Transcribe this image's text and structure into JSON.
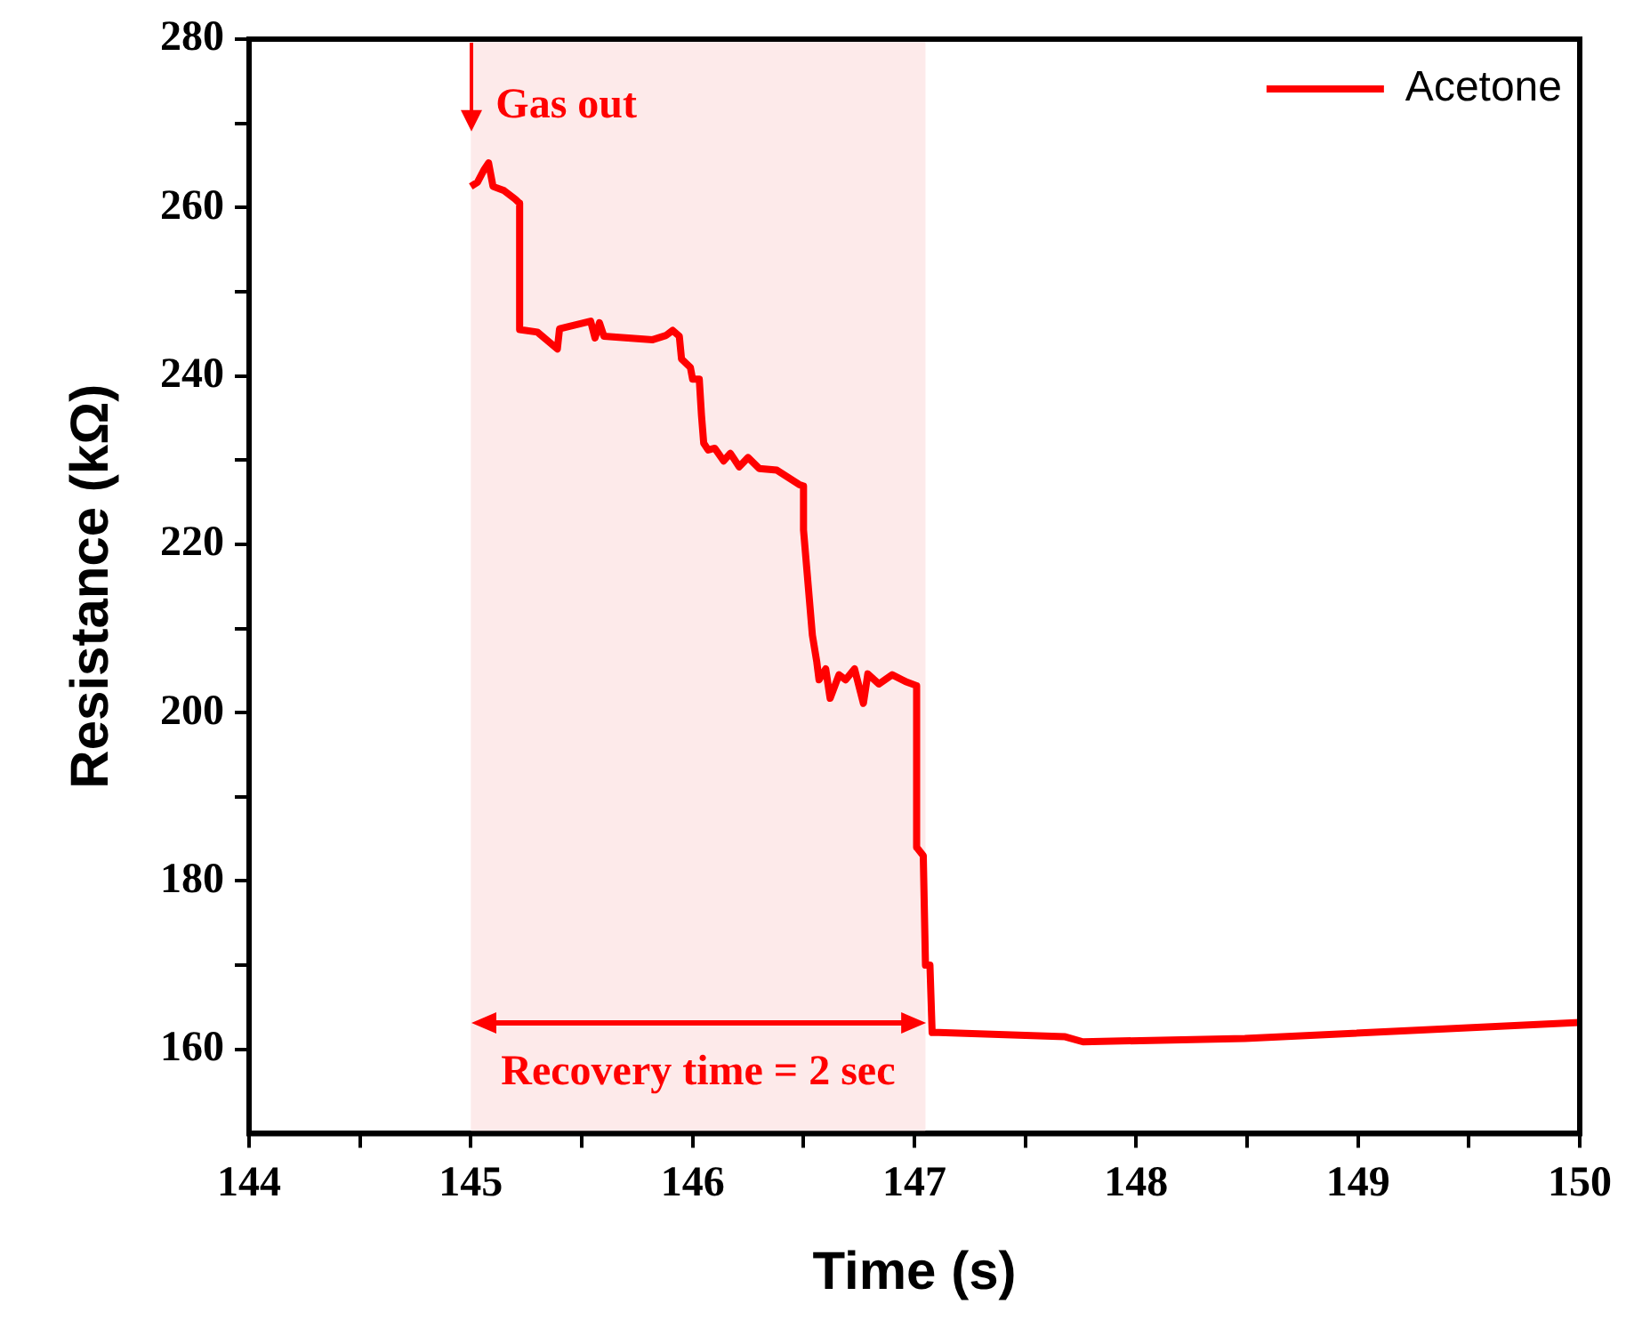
{
  "chart_data": {
    "type": "line",
    "xlabel": "Time (s)",
    "ylabel": "Resistance (kΩ)",
    "x": [
      145.0,
      145.03,
      145.06,
      145.08,
      145.1,
      145.15,
      145.2,
      145.22,
      145.22,
      145.3,
      145.39,
      145.4,
      145.54,
      145.56,
      145.58,
      145.6,
      145.82,
      145.88,
      145.91,
      145.94,
      145.95,
      145.99,
      146.0,
      146.03,
      146.04,
      146.05,
      146.07,
      146.1,
      146.14,
      146.17,
      146.21,
      146.25,
      146.3,
      146.38,
      146.48,
      146.5,
      146.5,
      146.54,
      146.56,
      146.57,
      146.6,
      146.62,
      146.66,
      146.69,
      146.73,
      146.77,
      146.79,
      146.84,
      146.9,
      146.96,
      147.01,
      147.01,
      147.04,
      147.05,
      147.07,
      147.08,
      147.11,
      147.68,
      147.76,
      148.49,
      150.0
    ],
    "series": [
      {
        "name": "Acetone",
        "color": "#ff0000",
        "values": [
          262.5,
          263,
          264.5,
          265.3,
          262.5,
          262,
          261,
          260.5,
          245.5,
          245.2,
          243.2,
          245.6,
          246.5,
          244.5,
          246.3,
          244.7,
          244.3,
          244.8,
          245.4,
          244.7,
          242,
          241,
          239.6,
          239.6,
          235.3,
          232,
          231.2,
          231.4,
          229.9,
          230.8,
          229.2,
          230.3,
          229,
          228.8,
          227.1,
          226.9,
          221.7,
          209.2,
          206,
          203.9,
          205.2,
          201.7,
          204.5,
          203.9,
          205.2,
          201.1,
          204.6,
          203.4,
          204.5,
          203.7,
          203.2,
          184,
          183,
          170,
          170,
          162,
          162,
          161.5,
          160.9,
          161.3,
          163.2
        ]
      }
    ],
    "xlim": [
      144,
      150
    ],
    "xticks": [
      144,
      {
        "value": 144.5,
        "label": null
      },
      145,
      {
        "value": 145.5,
        "label": null
      },
      146,
      {
        "value": 146.5,
        "label": null
      },
      147,
      {
        "value": 147.5,
        "label": null
      },
      148,
      {
        "value": 148.5,
        "label": null
      },
      149,
      {
        "value": 149.5,
        "label": null
      },
      150
    ],
    "ylim": [
      150,
      280
    ],
    "yticks": [
      160,
      {
        "value": 170,
        "label": null
      },
      180,
      {
        "value": 190,
        "label": null
      },
      200,
      {
        "value": 210,
        "label": null
      },
      220,
      {
        "value": 230,
        "label": null
      },
      240,
      {
        "value": 250,
        "label": null
      },
      260,
      {
        "value": 270,
        "label": null
      },
      280
    ],
    "bands": [
      {
        "axis": "x",
        "from": 145,
        "to": 147.05,
        "color": "#fbdcdc"
      }
    ],
    "annotations": [
      {
        "text": "Gas out",
        "x": 145,
        "y": 272
      },
      "Recovery time = 2 sec"
    ],
    "legend": "top right",
    "grid": false,
    "marker": "none",
    "line_style": "solid"
  }
}
